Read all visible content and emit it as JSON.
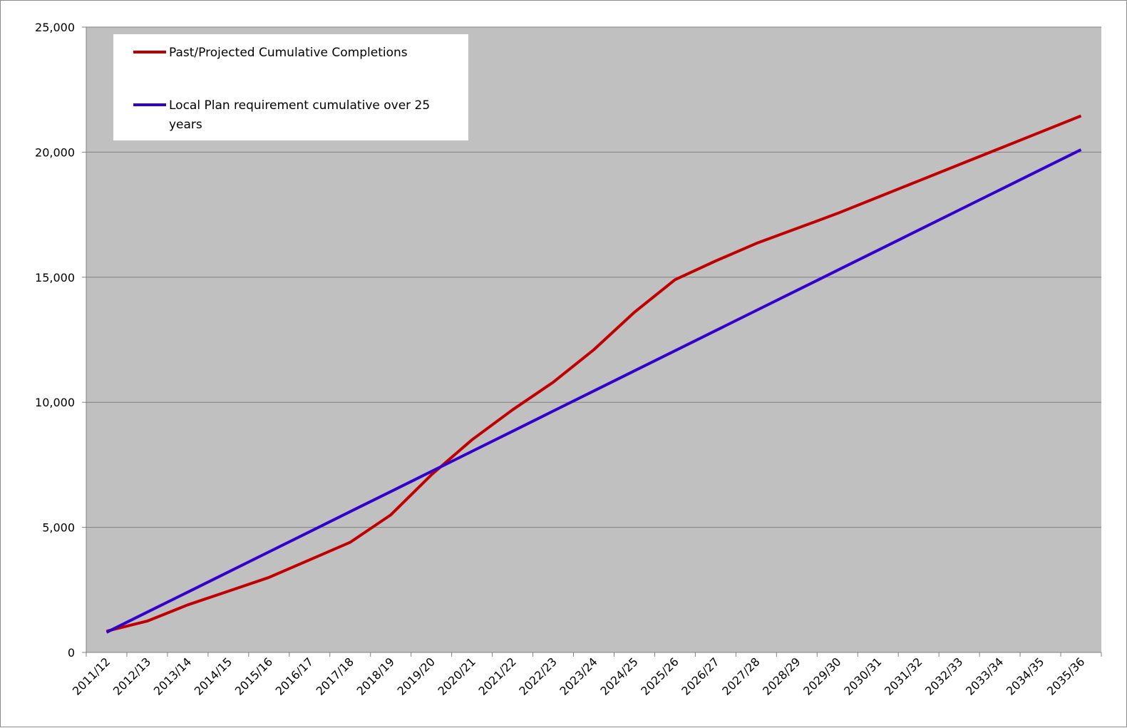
{
  "chart_data": {
    "type": "line",
    "title": "",
    "xlabel": "",
    "ylabel": "",
    "categories": [
      "2011/12",
      "2012/13",
      "2013/14",
      "2014/15",
      "2015/16",
      "2016/17",
      "2017/18",
      "2018/19",
      "2019/20",
      "2020/21",
      "2021/22",
      "2022/23",
      "2023/24",
      "2024/25",
      "2025/26",
      "2026/27",
      "2027/28",
      "2028/29",
      "2029/30",
      "2030/31",
      "2031/32",
      "2032/33",
      "2033/34",
      "2034/35",
      "2035/36"
    ],
    "ylim": [
      0,
      25000
    ],
    "yticks": [
      0,
      5000,
      10000,
      15000,
      20000,
      25000
    ],
    "ytick_labels": [
      "0",
      "5,000",
      "10,000",
      "15,000",
      "20,000",
      "25,000"
    ],
    "grid": true,
    "legend_position": "top-left",
    "series": [
      {
        "name": "Past/Projected Cumulative Completions",
        "color": "#c00000",
        "values": [
          850,
          1250,
          1900,
          2450,
          3000,
          3700,
          4400,
          5500,
          7100,
          8500,
          9700,
          10800,
          12100,
          13600,
          14900,
          15650,
          16350,
          16950,
          17550,
          18200,
          18850,
          19500,
          20150,
          20800,
          21450
        ]
      },
      {
        "name": "Local Plan requirement cumulative over 25 years",
        "legend_lines": [
          "Local Plan requirement cumulative over 25",
          "years"
        ],
        "color": "#3300cc",
        "values": [
          804,
          1608,
          2412,
          3216,
          4020,
          4824,
          5628,
          6432,
          7236,
          8040,
          8844,
          9648,
          10452,
          11256,
          12060,
          12864,
          13668,
          14472,
          15276,
          16080,
          16884,
          17688,
          18492,
          19296,
          20100
        ]
      }
    ]
  }
}
